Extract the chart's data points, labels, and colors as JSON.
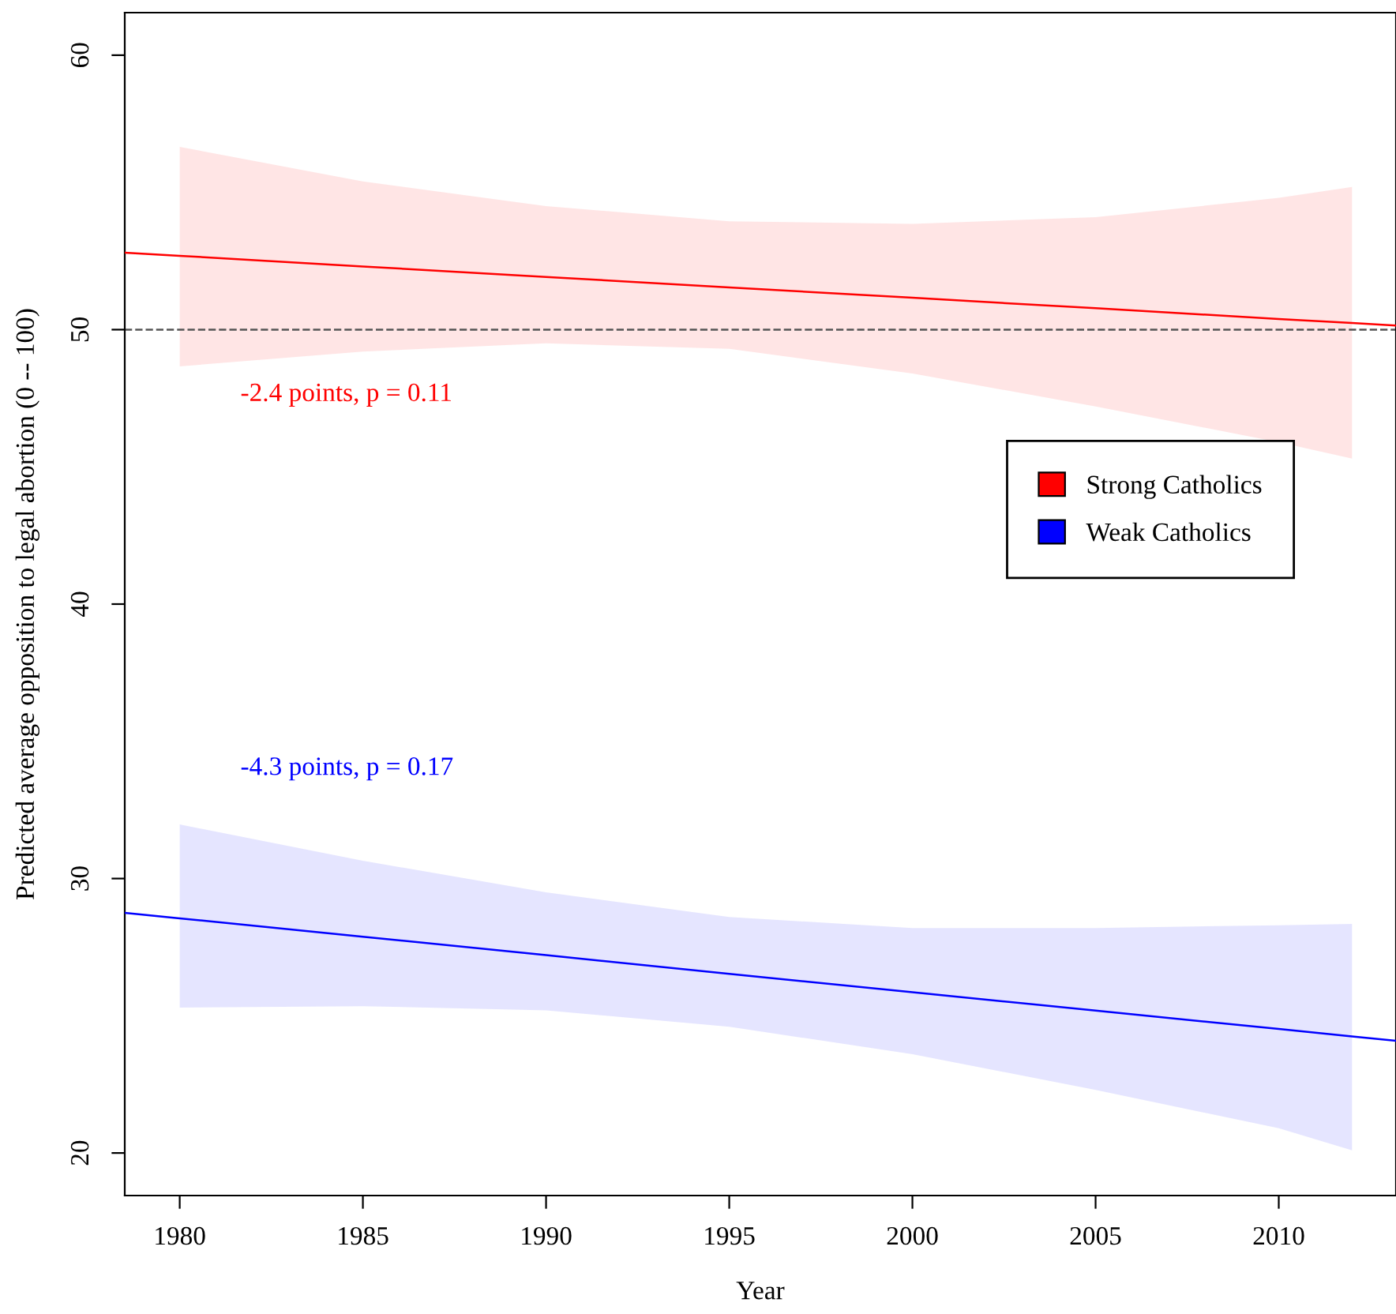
{
  "chart_data": {
    "type": "line",
    "xlabel": "Year",
    "ylabel": "Predicted average opposition to legal abortion (0 -- 100)",
    "xlim": [
      1978.5,
      2013.2
    ],
    "ylim": [
      18.45,
      61.55
    ],
    "xticks": [
      1980,
      1985,
      1990,
      1995,
      2000,
      2005,
      2010
    ],
    "yticks": [
      20,
      30,
      40,
      50,
      60
    ],
    "grid": false,
    "legend": "right",
    "line_style": "solid",
    "marker": "none",
    "series": [
      {
        "name": "Strong Catholics",
        "color": "#ff0000",
        "x": [
          1978.5,
          1980,
          1985,
          1990,
          1995,
          2000,
          2005,
          2010,
          2012,
          2013.2
        ],
        "values": [
          52.8,
          52.69,
          52.3,
          51.92,
          51.54,
          51.16,
          50.78,
          50.39,
          50.24,
          50.15
        ],
        "lower": [
          null,
          48.66,
          49.2,
          49.5,
          49.3,
          48.4,
          47.2,
          45.9,
          45.3,
          null
        ],
        "upper": [
          null,
          56.66,
          55.4,
          54.5,
          53.95,
          53.85,
          54.1,
          54.8,
          55.2,
          null
        ]
      },
      {
        "name": "Weak Catholics",
        "color": "#0000ff",
        "x": [
          1978.5,
          1980,
          1985,
          1990,
          1995,
          2000,
          2005,
          2010,
          2012,
          2013.2
        ],
        "values": [
          28.75,
          28.55,
          27.88,
          27.21,
          26.53,
          25.86,
          25.19,
          24.52,
          24.25,
          24.09
        ],
        "lower": [
          null,
          25.3,
          25.35,
          25.2,
          24.6,
          23.6,
          22.3,
          20.9,
          20.1,
          null
        ],
        "upper": [
          null,
          31.97,
          30.65,
          29.5,
          28.6,
          28.2,
          28.2,
          28.3,
          28.35,
          null
        ]
      }
    ],
    "ref_lines": [
      {
        "axis": "y",
        "value": 50,
        "color": "#555555",
        "line_style": "dashed"
      }
    ],
    "annotations": [
      "-2.4 points, p = 0.11",
      "-4.3 points, p = 0.17"
    ]
  }
}
